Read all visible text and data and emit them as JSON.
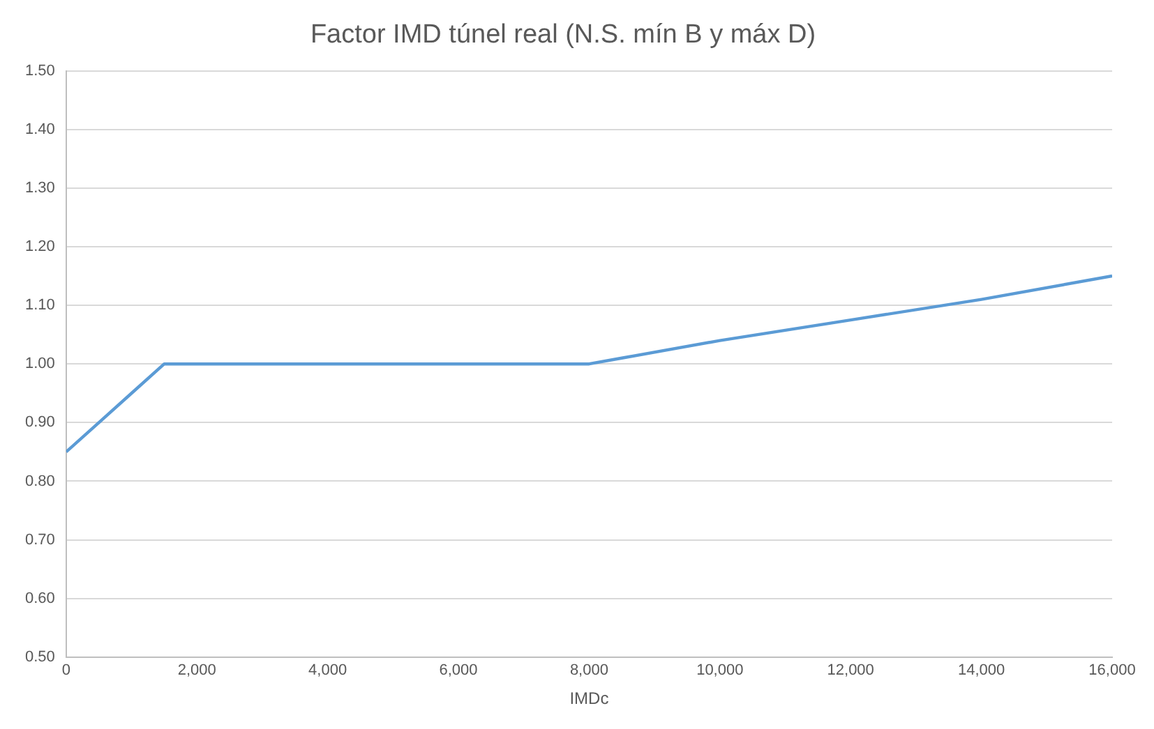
{
  "chart_data": {
    "type": "line",
    "title": "Factor IMD túnel real (N.S. mín B y máx D)",
    "xlabel": "IMDc",
    "x": [
      0,
      500,
      1000,
      1500,
      8000,
      8500,
      10000,
      12000,
      14000,
      16000
    ],
    "series": [
      {
        "color": "#5b9bd5",
        "values": [
          0.85,
          0.9,
          0.95,
          1.0,
          1.0,
          1.01,
          1.04,
          1.075,
          1.11,
          1.15
        ]
      }
    ],
    "xlim": [
      0,
      16000
    ],
    "xticks": [
      {
        "value": 0,
        "label": "0"
      },
      {
        "value": 2000,
        "label": "2,000"
      },
      {
        "value": 4000,
        "label": "4,000"
      },
      {
        "value": 6000,
        "label": "6,000"
      },
      {
        "value": 8000,
        "label": "8,000"
      },
      {
        "value": 10000,
        "label": "10,000"
      },
      {
        "value": 12000,
        "label": "12,000"
      },
      {
        "value": 14000,
        "label": "14,000"
      },
      {
        "value": 16000,
        "label": "16,000"
      }
    ],
    "ylim": [
      0.5,
      1.5
    ],
    "yticks": [
      {
        "value": 0.5,
        "label": "0.50"
      },
      {
        "value": 0.6,
        "label": "0.60"
      },
      {
        "value": 0.7,
        "label": "0.70"
      },
      {
        "value": 0.8,
        "label": "0.80"
      },
      {
        "value": 0.9,
        "label": "0.90"
      },
      {
        "value": 1.0,
        "label": "1.00"
      },
      {
        "value": 1.1,
        "label": "1.10"
      },
      {
        "value": 1.2,
        "label": "1.20"
      },
      {
        "value": 1.3,
        "label": "1.30"
      },
      {
        "value": 1.4,
        "label": "1.40"
      },
      {
        "value": 1.5,
        "label": "1.50"
      }
    ],
    "grid": "y",
    "legend": false,
    "marker": "none",
    "line_style": "solid"
  }
}
